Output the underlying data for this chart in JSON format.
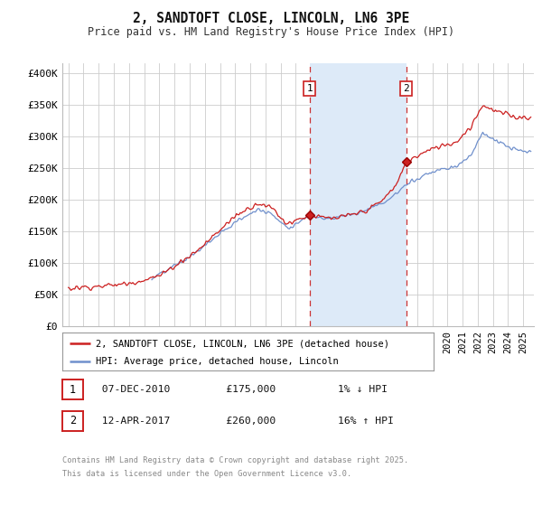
{
  "title": "2, SANDTOFT CLOSE, LINCOLN, LN6 3PE",
  "subtitle": "Price paid vs. HM Land Registry's House Price Index (HPI)",
  "ylabel_ticks": [
    "£0",
    "£50K",
    "£100K",
    "£150K",
    "£200K",
    "£250K",
    "£300K",
    "£350K",
    "£400K"
  ],
  "ytick_values": [
    0,
    50000,
    100000,
    150000,
    200000,
    250000,
    300000,
    350000,
    400000
  ],
  "ylim": [
    0,
    415000
  ],
  "xlim_start": 1994.6,
  "xlim_end": 2025.7,
  "marker1_x": 2010.92,
  "marker1_y": 175000,
  "marker2_x": 2017.28,
  "marker2_y": 260000,
  "vline_color": "#cc3333",
  "shade_color": "#ddeaf8",
  "red_line_color": "#cc2020",
  "hpi_line_color": "#7090cc",
  "box1_edge_color": "#cc2020",
  "box2_edge_color": "#cc2020",
  "legend1_label": "2, SANDTOFT CLOSE, LINCOLN, LN6 3PE (detached house)",
  "legend2_label": "HPI: Average price, detached house, Lincoln",
  "marker1_date": "07-DEC-2010",
  "marker1_price": "£175,000",
  "marker1_hpi": "1% ↓ HPI",
  "marker2_date": "12-APR-2017",
  "marker2_price": "£260,000",
  "marker2_hpi": "16% ↑ HPI",
  "footnote_line1": "Contains HM Land Registry data © Crown copyright and database right 2025.",
  "footnote_line2": "This data is licensed under the Open Government Licence v3.0.",
  "grid_color": "#cccccc",
  "bg_color": "#ffffff"
}
